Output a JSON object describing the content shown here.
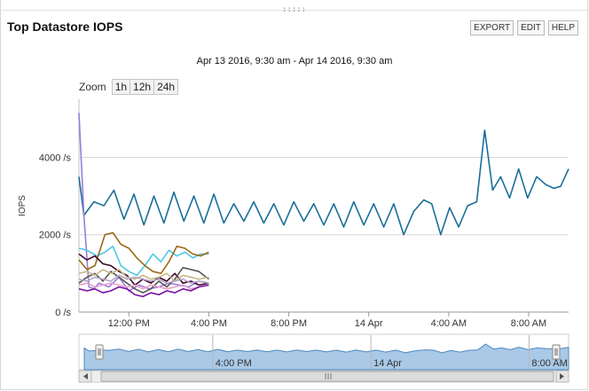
{
  "panel": {
    "title": "Top Datastore IOPS",
    "buttons": [
      "EXPORT",
      "EDIT",
      "HELP"
    ],
    "date_range": "Apr 13 2016, 9:30 am - Apr 14 2016, 9:30 am",
    "zoom_label": "Zoom",
    "zoom_options": [
      "1h",
      "12h",
      "24h"
    ]
  },
  "chart_data": {
    "type": "line",
    "title": "",
    "ylabel": "IOPS",
    "xlabel": "",
    "x_range": [
      "2016-04-13T09:30",
      "2016-04-14T09:30"
    ],
    "ylim": [
      0,
      5500
    ],
    "y_ticks": [
      {
        "value": 0,
        "label": "0 /s"
      },
      {
        "value": 2000,
        "label": "2000 /s"
      },
      {
        "value": 4000,
        "label": "4000 /s"
      }
    ],
    "x_ticks": [
      {
        "hour": 12,
        "label": "12:00 PM"
      },
      {
        "hour": 16,
        "label": "4:00 PM"
      },
      {
        "hour": 20,
        "label": "8:00 PM"
      },
      {
        "hour": 24,
        "label": "14 Apr"
      },
      {
        "hour": 28,
        "label": "4:00 AM"
      },
      {
        "hour": 32,
        "label": "8:00 AM"
      }
    ],
    "grid": true,
    "legend": "none",
    "series": [
      {
        "color": "#1b6e98",
        "points": [
          [
            9.5,
            3500
          ],
          [
            9.75,
            2500
          ],
          [
            10.25,
            2850
          ],
          [
            10.75,
            2750
          ],
          [
            11.25,
            3150
          ],
          [
            11.75,
            2400
          ],
          [
            12.25,
            3050
          ],
          [
            12.75,
            2250
          ],
          [
            13.25,
            3000
          ],
          [
            13.75,
            2300
          ],
          [
            14.25,
            3100
          ],
          [
            14.75,
            2350
          ],
          [
            15.25,
            3000
          ],
          [
            15.75,
            2300
          ],
          [
            16.25,
            3050
          ],
          [
            16.75,
            2300
          ],
          [
            17.25,
            2800
          ],
          [
            17.75,
            2350
          ],
          [
            18.25,
            2850
          ],
          [
            18.75,
            2300
          ],
          [
            19.25,
            2800
          ],
          [
            19.75,
            2250
          ],
          [
            20.25,
            2850
          ],
          [
            20.75,
            2350
          ],
          [
            21.25,
            2800
          ],
          [
            21.75,
            2250
          ],
          [
            22.25,
            2800
          ],
          [
            22.75,
            2200
          ],
          [
            23.25,
            2850
          ],
          [
            23.75,
            2250
          ],
          [
            24.25,
            2800
          ],
          [
            24.75,
            2200
          ],
          [
            25.25,
            2800
          ],
          [
            25.75,
            2000
          ],
          [
            26.25,
            2600
          ],
          [
            26.75,
            2900
          ],
          [
            27.15,
            2800
          ],
          [
            27.6,
            2000
          ],
          [
            28.05,
            2700
          ],
          [
            28.5,
            2200
          ],
          [
            28.95,
            2750
          ],
          [
            29.4,
            2850
          ],
          [
            29.8,
            4700
          ],
          [
            30.2,
            3150
          ],
          [
            30.6,
            3500
          ],
          [
            31.05,
            2950
          ],
          [
            31.5,
            3700
          ],
          [
            31.95,
            2950
          ],
          [
            32.4,
            3500
          ],
          [
            32.85,
            3300
          ],
          [
            33.25,
            3200
          ],
          [
            33.6,
            3250
          ],
          [
            34.0,
            3700
          ]
        ]
      },
      {
        "color": "#9a7ddb",
        "points": [
          [
            9.5,
            5150
          ],
          [
            9.75,
            2500
          ],
          [
            10.0,
            650
          ],
          [
            10.25,
            600
          ],
          [
            10.5,
            750
          ],
          [
            11.0,
            650
          ],
          [
            11.5,
            900
          ],
          [
            12.0,
            550
          ],
          [
            12.5,
            700
          ],
          [
            13.0,
            600
          ],
          [
            13.5,
            650
          ],
          [
            14.0,
            750
          ],
          [
            14.5,
            700
          ],
          [
            15.0,
            650
          ],
          [
            15.5,
            800
          ],
          [
            16.0,
            750
          ]
        ]
      },
      {
        "color": "#4ec8e8",
        "points": [
          [
            9.5,
            1650
          ],
          [
            9.9,
            1600
          ],
          [
            10.4,
            1450
          ],
          [
            10.8,
            1550
          ],
          [
            11.2,
            1700
          ],
          [
            11.6,
            1200
          ],
          [
            12.0,
            1050
          ],
          [
            12.4,
            950
          ],
          [
            12.8,
            1200
          ],
          [
            13.2,
            1500
          ],
          [
            13.6,
            1300
          ],
          [
            14.0,
            1600
          ],
          [
            14.4,
            1450
          ],
          [
            14.8,
            1550
          ],
          [
            15.2,
            1400
          ],
          [
            15.6,
            1500
          ],
          [
            16.0,
            1500
          ]
        ]
      },
      {
        "color": "#9c6a12",
        "points": [
          [
            9.5,
            1350
          ],
          [
            9.9,
            1100
          ],
          [
            10.3,
            1200
          ],
          [
            10.8,
            2000
          ],
          [
            11.2,
            2050
          ],
          [
            11.6,
            1750
          ],
          [
            12.0,
            1650
          ],
          [
            12.4,
            1400
          ],
          [
            12.8,
            1200
          ],
          [
            13.2,
            1050
          ],
          [
            13.6,
            1000
          ],
          [
            14.0,
            1300
          ],
          [
            14.4,
            1700
          ],
          [
            14.8,
            1650
          ],
          [
            15.2,
            1500
          ],
          [
            15.6,
            1450
          ],
          [
            16.0,
            1550
          ]
        ]
      },
      {
        "color": "#3a0a2a",
        "points": [
          [
            9.5,
            1500
          ],
          [
            9.9,
            1350
          ],
          [
            10.3,
            1450
          ],
          [
            10.7,
            1250
          ],
          [
            11.1,
            1200
          ],
          [
            11.5,
            1050
          ],
          [
            11.9,
            950
          ],
          [
            12.3,
            700
          ],
          [
            12.7,
            850
          ],
          [
            13.1,
            750
          ],
          [
            13.5,
            900
          ],
          [
            13.9,
            800
          ],
          [
            14.3,
            1000
          ],
          [
            14.7,
            750
          ],
          [
            15.1,
            800
          ],
          [
            15.5,
            700
          ],
          [
            16.0,
            750
          ]
        ]
      },
      {
        "color": "#555555",
        "points": [
          [
            9.5,
            750
          ],
          [
            9.9,
            900
          ],
          [
            10.3,
            1000
          ],
          [
            10.7,
            800
          ],
          [
            11.1,
            1050
          ],
          [
            11.5,
            900
          ],
          [
            11.9,
            750
          ],
          [
            12.3,
            600
          ],
          [
            12.7,
            500
          ],
          [
            13.1,
            600
          ],
          [
            13.5,
            800
          ],
          [
            13.9,
            650
          ],
          [
            14.3,
            850
          ],
          [
            14.7,
            1150
          ],
          [
            15.1,
            1100
          ],
          [
            15.5,
            1050
          ],
          [
            16.0,
            850
          ]
        ]
      },
      {
        "color": "#c8b88a",
        "points": [
          [
            9.5,
            1000
          ],
          [
            9.9,
            1050
          ],
          [
            10.3,
            950
          ],
          [
            10.7,
            1100
          ],
          [
            11.1,
            1000
          ],
          [
            11.5,
            1100
          ],
          [
            11.9,
            900
          ],
          [
            12.3,
            850
          ],
          [
            12.7,
            950
          ],
          [
            13.1,
            850
          ],
          [
            13.5,
            900
          ],
          [
            13.9,
            1000
          ],
          [
            14.3,
            800
          ],
          [
            14.7,
            950
          ],
          [
            15.1,
            900
          ],
          [
            15.5,
            850
          ],
          [
            16.0,
            900
          ]
        ]
      },
      {
        "color": "#b6a4c8",
        "points": [
          [
            9.5,
            850
          ],
          [
            9.9,
            800
          ],
          [
            10.3,
            900
          ],
          [
            10.7,
            850
          ],
          [
            11.1,
            800
          ],
          [
            11.5,
            950
          ],
          [
            11.9,
            850
          ],
          [
            12.3,
            900
          ],
          [
            12.7,
            850
          ],
          [
            13.1,
            800
          ],
          [
            13.5,
            850
          ],
          [
            13.9,
            750
          ],
          [
            14.3,
            800
          ],
          [
            14.7,
            850
          ],
          [
            15.1,
            750
          ],
          [
            15.5,
            800
          ],
          [
            16.0,
            750
          ]
        ]
      },
      {
        "color": "#e8a0c8",
        "points": [
          [
            9.5,
            700
          ],
          [
            9.9,
            750
          ],
          [
            10.3,
            650
          ],
          [
            10.7,
            700
          ],
          [
            11.1,
            750
          ],
          [
            11.5,
            700
          ],
          [
            11.9,
            650
          ],
          [
            12.3,
            700
          ],
          [
            12.7,
            600
          ],
          [
            13.1,
            700
          ],
          [
            13.5,
            650
          ],
          [
            13.9,
            600
          ],
          [
            14.3,
            650
          ],
          [
            14.7,
            700
          ],
          [
            15.1,
            600
          ],
          [
            15.5,
            650
          ],
          [
            16.0,
            700
          ]
        ]
      },
      {
        "color": "#7a10a0",
        "points": [
          [
            9.5,
            600
          ],
          [
            9.9,
            550
          ],
          [
            10.3,
            600
          ],
          [
            10.7,
            500
          ],
          [
            11.1,
            550
          ],
          [
            11.5,
            650
          ],
          [
            11.9,
            600
          ],
          [
            12.3,
            450
          ],
          [
            12.7,
            400
          ],
          [
            13.1,
            500
          ],
          [
            13.5,
            450
          ],
          [
            13.9,
            550
          ],
          [
            14.3,
            500
          ],
          [
            14.7,
            600
          ],
          [
            15.1,
            550
          ],
          [
            15.5,
            650
          ],
          [
            16.0,
            700
          ]
        ]
      }
    ],
    "navigator": {
      "x_ticks": [
        {
          "hour": 16,
          "label": "4:00 PM"
        },
        {
          "hour": 24,
          "label": "14 Apr"
        },
        {
          "hour": 32,
          "label": "8:00 AM"
        }
      ]
    }
  }
}
